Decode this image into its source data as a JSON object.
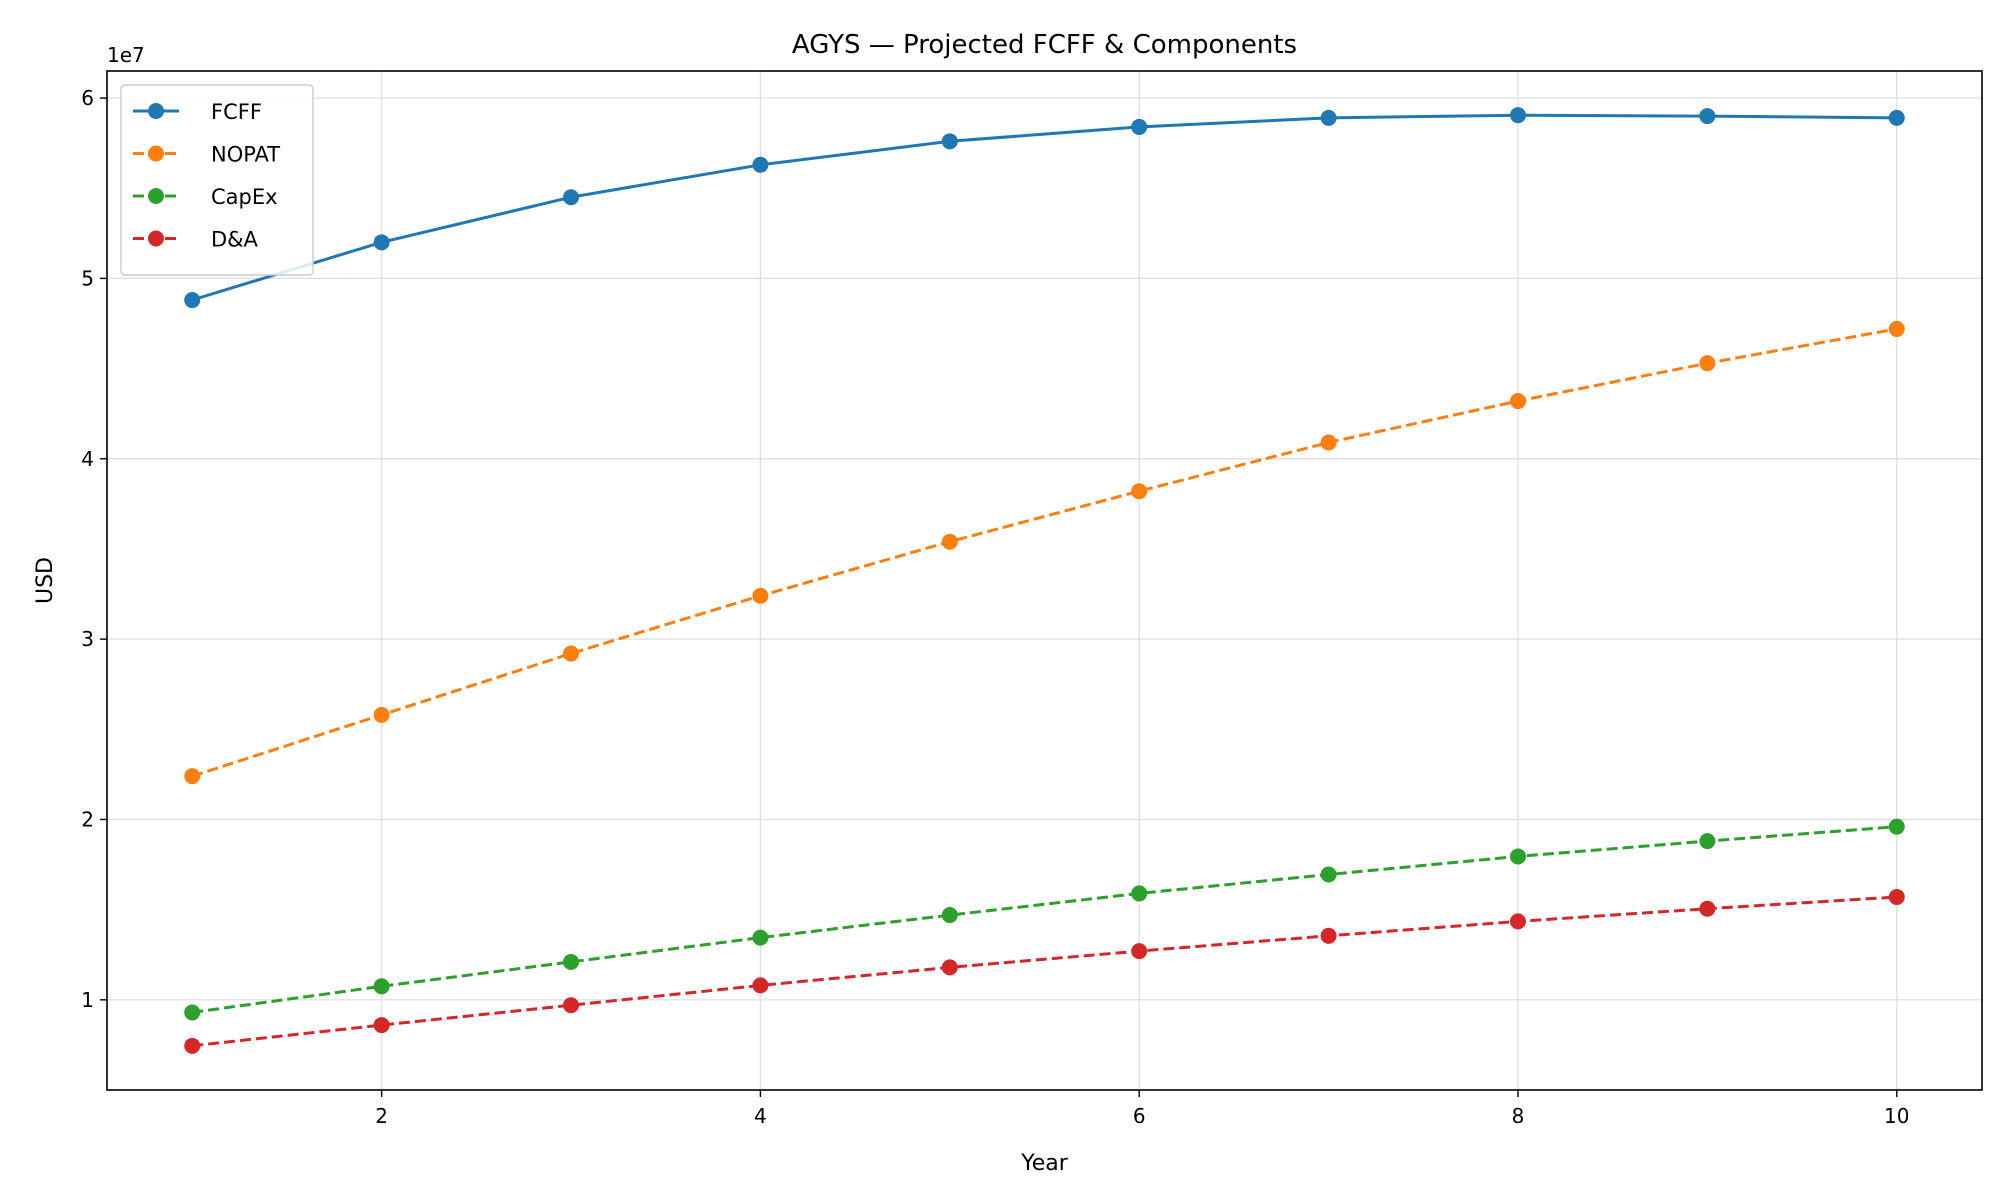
{
  "chart_data": {
    "type": "line",
    "title": "AGYS — Projected FCFF & Components",
    "xlabel": "Year",
    "ylabel": "USD",
    "y_offset_text": "1e7",
    "y_multiplier": 10000000,
    "x": [
      1,
      2,
      3,
      4,
      5,
      6,
      7,
      8,
      9,
      10
    ],
    "xlim": [
      0.55,
      10.45
    ],
    "ylim": [
      0.5,
      6.15
    ],
    "x_ticks": [
      2,
      4,
      6,
      8,
      10
    ],
    "y_ticks": [
      1,
      2,
      3,
      4,
      5,
      6
    ],
    "grid": true,
    "legend_position": "top-left",
    "series": [
      {
        "name": "FCFF",
        "color": "#1f77b4",
        "style": "solid",
        "values": [
          4.88,
          5.2,
          5.45,
          5.63,
          5.76,
          5.84,
          5.89,
          5.905,
          5.9,
          5.89
        ]
      },
      {
        "name": "NOPAT",
        "color": "#ff7f0e",
        "style": "dashed",
        "values": [
          2.24,
          2.58,
          2.92,
          3.24,
          3.54,
          3.82,
          4.09,
          4.32,
          4.53,
          4.72
        ]
      },
      {
        "name": "CapEx",
        "color": "#2ca02c",
        "style": "dashed",
        "values": [
          0.93,
          1.075,
          1.21,
          1.345,
          1.47,
          1.59,
          1.695,
          1.795,
          1.88,
          1.96
        ]
      },
      {
        "name": "D&A",
        "color": "#d62728",
        "style": "dashed",
        "values": [
          0.745,
          0.86,
          0.97,
          1.08,
          1.18,
          1.27,
          1.355,
          1.435,
          1.505,
          1.57
        ]
      }
    ]
  }
}
